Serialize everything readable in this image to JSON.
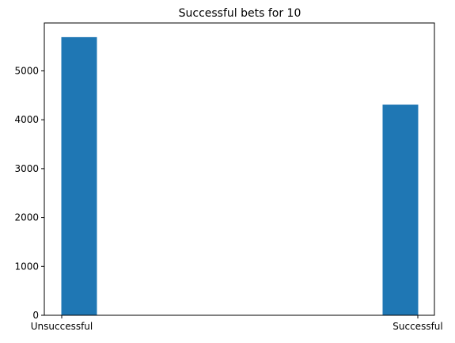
{
  "chart_data": {
    "type": "bar",
    "title": "Successful bets for 10",
    "xlabel": "",
    "ylabel": "",
    "categories": [
      "Unsuccessful",
      "Successful"
    ],
    "values": [
      5690,
      4310
    ],
    "ylim": [
      0,
      5980
    ],
    "yticks": [
      0,
      1000,
      2000,
      3000,
      4000,
      5000
    ],
    "grid": false,
    "color": "#1f77b4"
  }
}
